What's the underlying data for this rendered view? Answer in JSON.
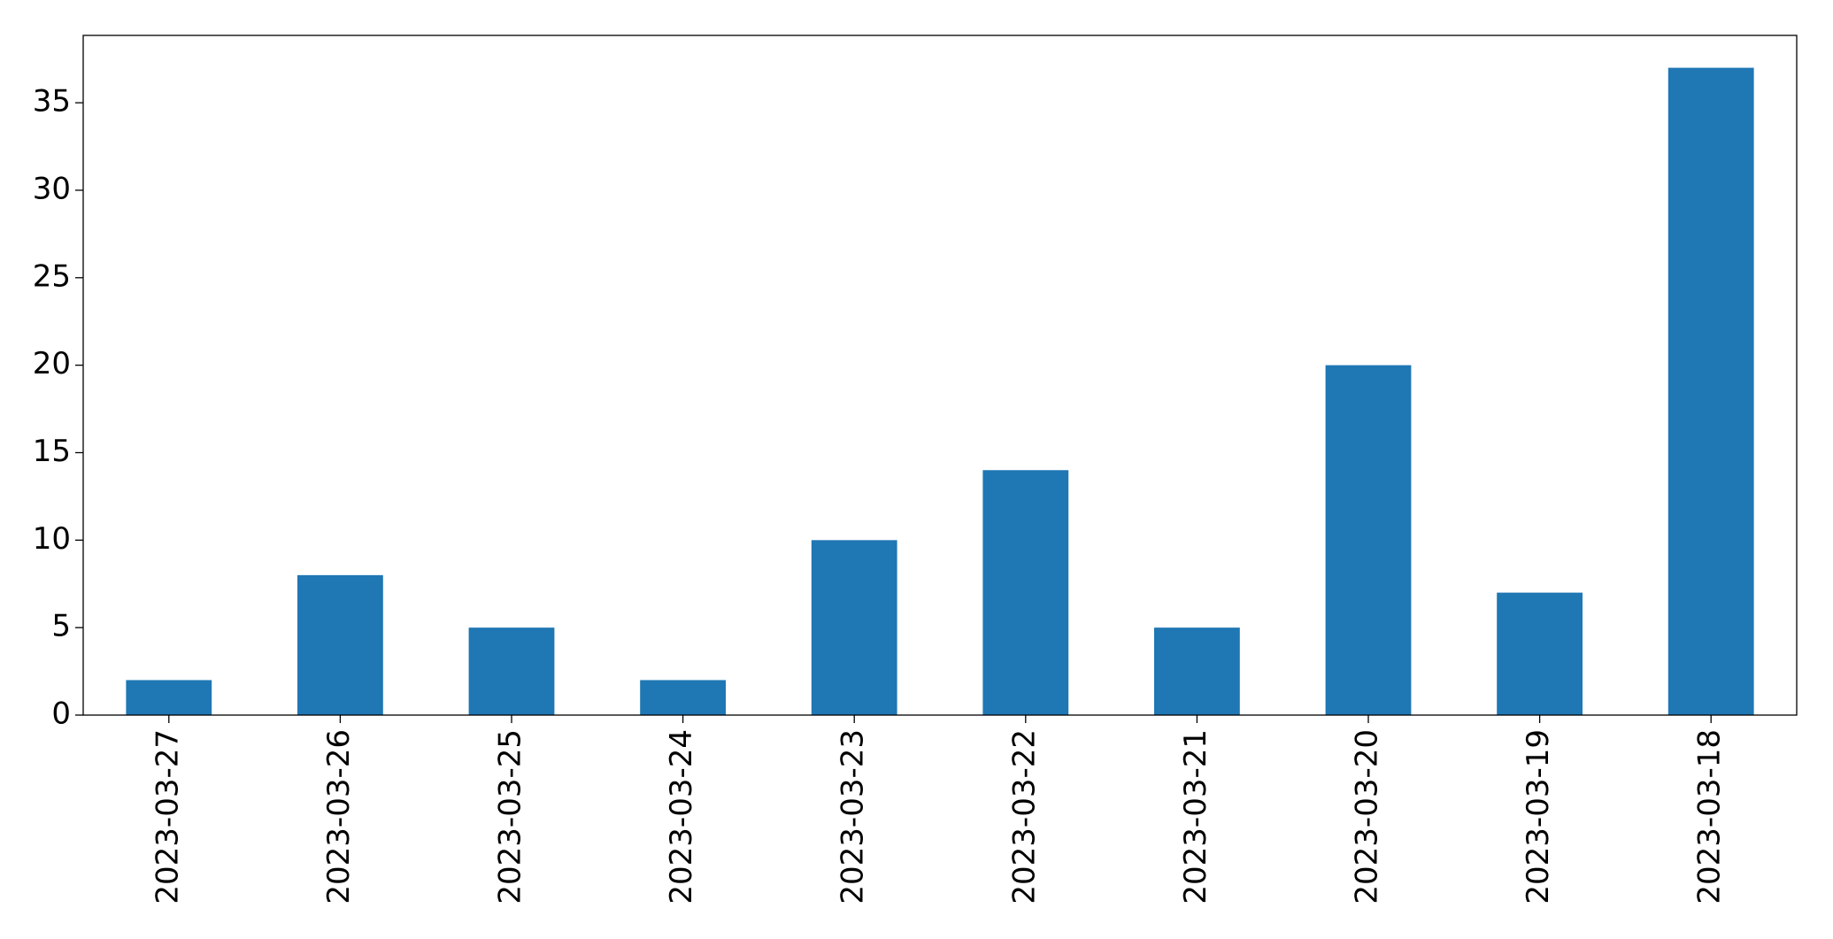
{
  "chart_data": {
    "type": "bar",
    "categories": [
      "2023-03-27",
      "2023-03-26",
      "2023-03-25",
      "2023-03-24",
      "2023-03-23",
      "2023-03-22",
      "2023-03-21",
      "2023-03-20",
      "2023-03-19",
      "2023-03-18"
    ],
    "values": [
      2,
      8,
      5,
      2,
      10,
      14,
      5,
      20,
      7,
      37
    ],
    "color": "#1f77b4",
    "ylim": [
      0,
      38.85
    ],
    "yticks": [
      0,
      5,
      10,
      15,
      20,
      25,
      30,
      35
    ],
    "grid": false
  }
}
